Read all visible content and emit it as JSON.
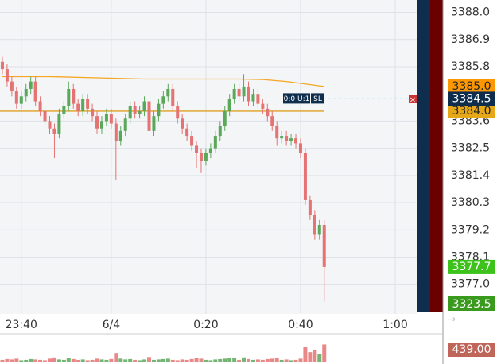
{
  "chart_data": {
    "type": "candlestick",
    "up_color": "#5aa85a",
    "down_color": "#e57373",
    "xlim": [
      -0.5,
      87.7
    ],
    "ylim": [
      3375.8,
      3388.5
    ],
    "grid": true,
    "xticks": [
      {
        "value": 4,
        "label": "23:40"
      },
      {
        "value": 23,
        "label": "6/4"
      },
      {
        "value": 43,
        "label": "0:20"
      },
      {
        "value": 63,
        "label": "0:40"
      },
      {
        "value": 83,
        "label": "1:00"
      }
    ],
    "yticks": [
      {
        "value": 3388,
        "label": "3388.0"
      },
      {
        "value": 3386.9,
        "label": "3386.9"
      },
      {
        "value": 3385.8,
        "label": "3385.8"
      },
      {
        "value": 3383.6,
        "label": "3383.6"
      },
      {
        "value": 3382.5,
        "label": "3382.5"
      },
      {
        "value": 3381.4,
        "label": "3381.4"
      },
      {
        "value": 3380.3,
        "label": "3380.3"
      },
      {
        "value": 3379.2,
        "label": "3379.2"
      },
      {
        "value": 3378.1,
        "label": "3378.1"
      },
      {
        "value": 3377,
        "label": "3377.0"
      }
    ],
    "candles": [
      [
        3386.0,
        3386.2,
        3385.5,
        3385.7
      ],
      [
        3385.7,
        3385.9,
        3385.0,
        3385.2
      ],
      [
        3385.2,
        3385.4,
        3384.6,
        3384.8
      ],
      [
        3384.8,
        3385.0,
        3384.1,
        3384.3
      ],
      [
        3384.3,
        3384.8,
        3384.1,
        3384.6
      ],
      [
        3384.6,
        3385.1,
        3384.4,
        3384.9
      ],
      [
        3384.9,
        3385.4,
        3384.7,
        3385.2
      ],
      [
        3385.2,
        3385.4,
        3384.2,
        3384.4
      ],
      [
        3384.4,
        3384.6,
        3383.8,
        3384.0
      ],
      [
        3384.0,
        3384.2,
        3383.4,
        3383.6
      ],
      [
        3383.6,
        3383.8,
        3383.1,
        3383.3
      ],
      [
        3383.3,
        3383.5,
        3382.1,
        3383.1
      ],
      [
        3383.1,
        3384.1,
        3382.9,
        3383.9
      ],
      [
        3383.9,
        3384.4,
        3383.7,
        3384.2
      ],
      [
        3384.2,
        3385.2,
        3384.0,
        3384.9
      ],
      [
        3384.9,
        3385.1,
        3384.1,
        3384.3
      ],
      [
        3384.3,
        3384.5,
        3383.8,
        3384.0
      ],
      [
        3384.0,
        3384.7,
        3383.8,
        3384.5
      ],
      [
        3384.5,
        3384.7,
        3383.9,
        3384.1
      ],
      [
        3384.1,
        3384.3,
        3383.6,
        3383.8
      ],
      [
        3383.8,
        3384.0,
        3383.1,
        3383.3
      ],
      [
        3383.3,
        3383.8,
        3383.1,
        3383.6
      ],
      [
        3383.6,
        3384.1,
        3383.4,
        3383.9
      ],
      [
        3383.9,
        3384.1,
        3383.3,
        3383.5
      ],
      [
        3383.5,
        3383.7,
        3381.2,
        3382.8
      ],
      [
        3382.8,
        3383.4,
        3382.6,
        3383.2
      ],
      [
        3383.2,
        3383.9,
        3383.0,
        3383.7
      ],
      [
        3383.7,
        3384.4,
        3383.5,
        3384.2
      ],
      [
        3384.2,
        3384.4,
        3383.7,
        3383.9
      ],
      [
        3383.9,
        3384.2,
        3383.7,
        3384.0
      ],
      [
        3384.0,
        3384.6,
        3383.8,
        3384.4
      ],
      [
        3384.4,
        3384.6,
        3382.6,
        3383.2
      ],
      [
        3383.2,
        3384.0,
        3383.0,
        3383.8
      ],
      [
        3383.8,
        3384.5,
        3383.6,
        3384.3
      ],
      [
        3384.3,
        3384.8,
        3384.1,
        3384.6
      ],
      [
        3384.6,
        3385.1,
        3384.4,
        3384.9
      ],
      [
        3384.9,
        3385.1,
        3384.0,
        3384.2
      ],
      [
        3384.2,
        3384.4,
        3383.5,
        3383.7
      ],
      [
        3383.7,
        3383.9,
        3383.1,
        3383.3
      ],
      [
        3383.3,
        3383.5,
        3382.8,
        3383.0
      ],
      [
        3383.0,
        3383.2,
        3382.4,
        3382.6
      ],
      [
        3382.6,
        3382.8,
        3381.7,
        3382.3
      ],
      [
        3382.3,
        3382.5,
        3381.5,
        3382.0
      ],
      [
        3382.0,
        3382.5,
        3381.8,
        3382.3
      ],
      [
        3382.3,
        3382.7,
        3382.1,
        3382.5
      ],
      [
        3382.5,
        3383.2,
        3382.3,
        3383.0
      ],
      [
        3383.0,
        3383.6,
        3382.8,
        3383.4
      ],
      [
        3383.4,
        3384.2,
        3383.2,
        3384.0
      ],
      [
        3384.0,
        3384.7,
        3383.8,
        3384.5
      ],
      [
        3384.5,
        3385.1,
        3384.3,
        3384.9
      ],
      [
        3384.9,
        3385.1,
        3384.4,
        3384.6
      ],
      [
        3384.6,
        3385.5,
        3384.4,
        3385.0
      ],
      [
        3385.0,
        3385.2,
        3384.2,
        3384.4
      ],
      [
        3384.4,
        3384.9,
        3384.2,
        3384.7
      ],
      [
        3384.7,
        3384.9,
        3384.1,
        3384.3
      ],
      [
        3384.3,
        3384.5,
        3383.9,
        3384.1
      ],
      [
        3384.1,
        3384.3,
        3383.6,
        3383.8
      ],
      [
        3383.8,
        3384.0,
        3383.2,
        3383.4
      ],
      [
        3383.4,
        3383.6,
        3382.6,
        3382.9
      ],
      [
        3382.9,
        3383.2,
        3382.7,
        3383.0
      ],
      [
        3383.0,
        3383.2,
        3382.6,
        3382.8
      ],
      [
        3382.8,
        3383.1,
        3382.6,
        3382.9
      ],
      [
        3382.9,
        3383.1,
        3382.5,
        3382.7
      ],
      [
        3382.7,
        3382.9,
        3382.1,
        3382.3
      ],
      [
        3382.3,
        3382.5,
        3380.2,
        3380.4
      ],
      [
        3380.4,
        3380.6,
        3379.6,
        3379.8
      ],
      [
        3379.8,
        3380.0,
        3378.8,
        3379.0
      ],
      [
        3379.0,
        3379.6,
        3378.8,
        3379.4
      ],
      [
        3379.4,
        3379.6,
        3376.3,
        3377.7
      ]
    ],
    "volume": {
      "ylim": [
        0,
        700
      ],
      "values": [
        60,
        80,
        70,
        90,
        50,
        60,
        80,
        70,
        60,
        50,
        90,
        120,
        70,
        60,
        100,
        80,
        60,
        70,
        50,
        60,
        90,
        70,
        60,
        80,
        230,
        90,
        70,
        80,
        60,
        50,
        70,
        130,
        60,
        70,
        80,
        90,
        60,
        50,
        70,
        60,
        80,
        110,
        90,
        60,
        50,
        70,
        80,
        90,
        100,
        110,
        60,
        120,
        80,
        60,
        70,
        60,
        80,
        90,
        110,
        60,
        70,
        50,
        60,
        90,
        370,
        250,
        310,
        200,
        439
      ],
      "current": {
        "value": 439,
        "label": "439.00"
      }
    },
    "lines": [
      {
        "name": "upper",
        "color": "#f5a623",
        "x": [
          0,
          10,
          20,
          30,
          40,
          50,
          55,
          60,
          64,
          68
        ],
        "values": [
          3385.4,
          3385.4,
          3385.35,
          3385.3,
          3385.3,
          3385.3,
          3385.28,
          3385.2,
          3385.1,
          3385.0
        ],
        "label": "3385.0",
        "label_bg": "#ff9800"
      },
      {
        "name": "lower",
        "color": "#e0a020",
        "x": [
          -0.5,
          68
        ],
        "values": [
          3384.0,
          3384.0
        ],
        "label": "3384.0",
        "label_bg": "#e6a817"
      }
    ],
    "order": {
      "value": 3384.5,
      "label": "3384.5",
      "qty": "0:0 U:1",
      "type": "SL",
      "close": "×"
    },
    "last": {
      "value": 3377.7,
      "label": "3377.7"
    },
    "off_scale_label": "3323.5"
  }
}
